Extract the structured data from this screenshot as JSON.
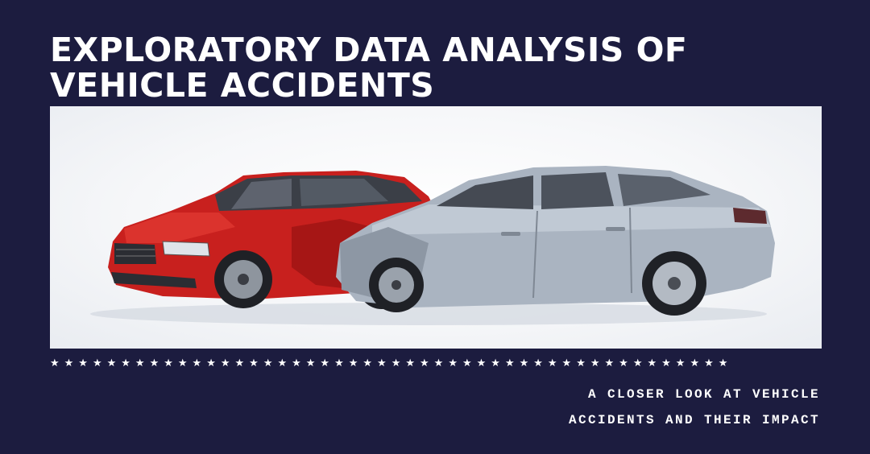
{
  "title": "EXPLORATORY DATA ANALYSIS OF VEHICLE ACCIDENTS",
  "subtitle": {
    "line1": "A CLOSER LOOK AT VEHICLE",
    "line2": "ACCIDENTS AND THEIR IMPACT"
  },
  "divider_stars": "★★★★★★★★★★★★★★★★★★★★★★★★★★★★★★★★★★★★★★★★★★★★★★★★",
  "colors": {
    "background": "#1c1c3f",
    "text": "#ffffff",
    "red_car": "#c8201e",
    "silver_car": "#aab4c1"
  },
  "image": {
    "icon": "car-crash-photo"
  }
}
